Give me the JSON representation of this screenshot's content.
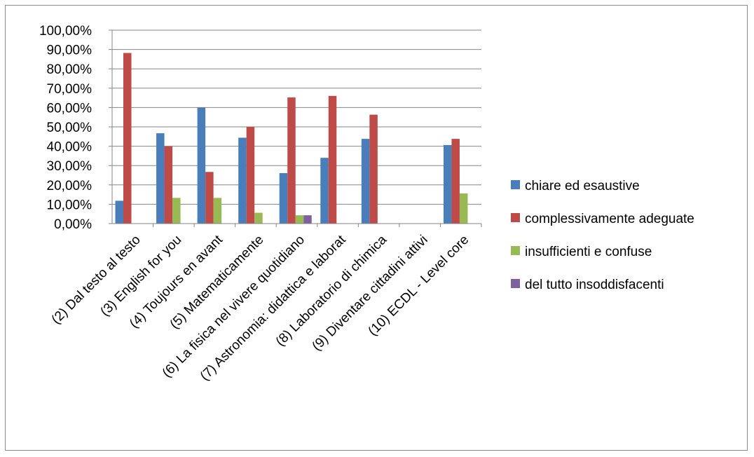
{
  "chart_data": {
    "type": "bar",
    "title": "",
    "xlabel": "",
    "ylabel": "",
    "ylim": [
      0,
      1
    ],
    "y_ticks": [
      "0,00%",
      "10,00%",
      "20,00%",
      "30,00%",
      "40,00%",
      "50,00%",
      "60,00%",
      "70,00%",
      "80,00%",
      "90,00%",
      "100,00%"
    ],
    "grid": true,
    "legend_position": "right",
    "categories": [
      "(2) Dal testo al testo",
      "(3) English for you",
      "(4) Toujours en avant",
      "(5) Matematicamente",
      "(6) La fisica nel vivere quotidiano",
      "(7) Astronomia: didattica e laborat",
      "(8) Laboratorio di chimica",
      "(9) Diventare cittadini attivi",
      "(10) ECDL - Level core"
    ],
    "series": [
      {
        "name": "chiare ed esaustive",
        "color": "#4a7ebb",
        "values": [
          0.118,
          0.467,
          0.6,
          0.444,
          0.261,
          0.34,
          0.438,
          0,
          0.406
        ]
      },
      {
        "name": "complessivamente adeguate",
        "color": "#be4b48",
        "values": [
          0.882,
          0.4,
          0.267,
          0.5,
          0.652,
          0.66,
          0.563,
          0,
          0.438
        ]
      },
      {
        "name": "insufficienti e confuse",
        "color": "#98b954",
        "values": [
          0,
          0.133,
          0.133,
          0.056,
          0.043,
          0,
          0,
          0,
          0.156
        ]
      },
      {
        "name": "del tutto insoddisfacenti",
        "color": "#7d60a0",
        "values": [
          0,
          0,
          0,
          0,
          0.043,
          0,
          0,
          0,
          0
        ]
      }
    ]
  }
}
